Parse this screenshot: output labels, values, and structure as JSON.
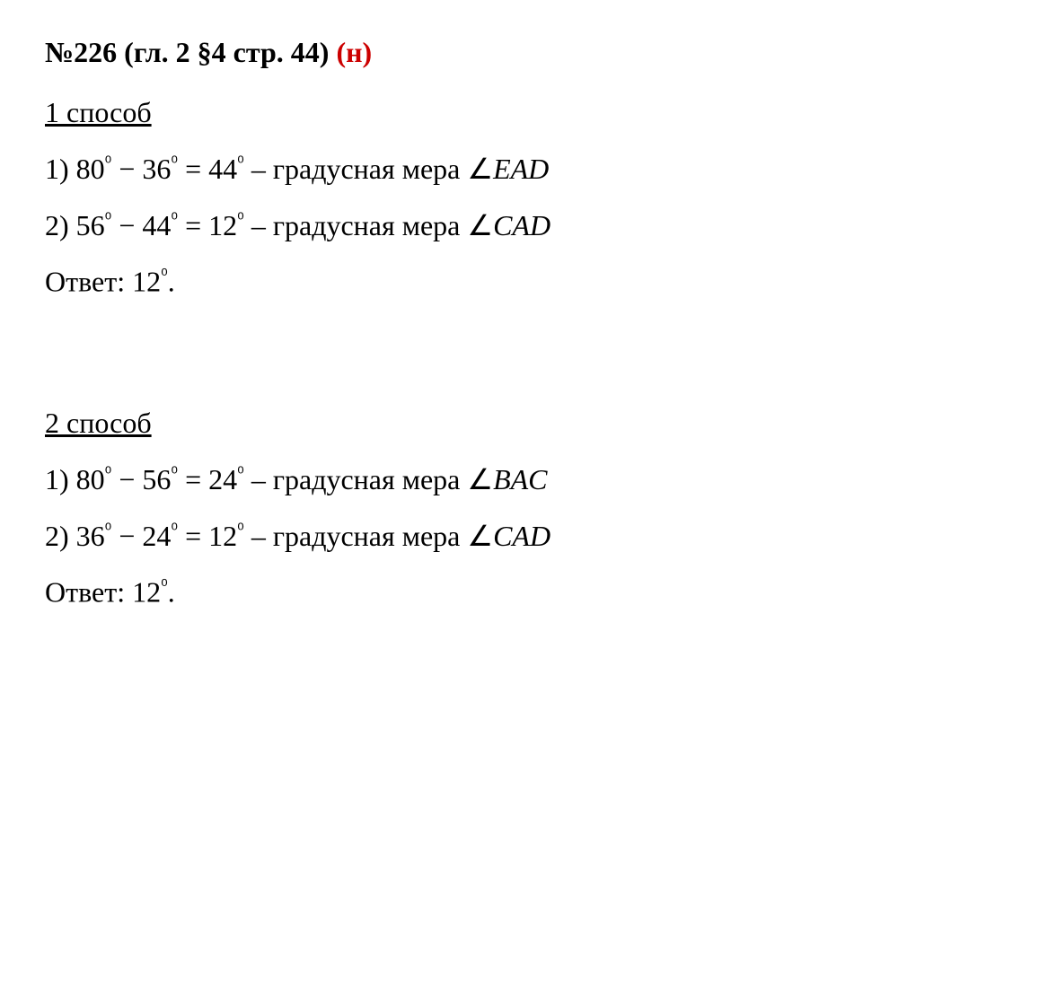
{
  "title": {
    "number": "№226",
    "ref": " (гл. 2 §4 стр. 44) ",
    "marker": "(н)",
    "title_color": "#000000",
    "marker_color": "#cc0000",
    "font_weight": "bold"
  },
  "methods": [
    {
      "heading": "1 способ",
      "steps": [
        {
          "num": "1)",
          "expr_left": "80",
          "op": " − ",
          "expr_right": "36",
          "eq": " = ",
          "result": "44",
          "deg_suffix": "⁰",
          "desc": " – градусная мера ",
          "angle_symbol": "∠",
          "angle_name": "EAD"
        },
        {
          "num": "2)",
          "expr_left": "56",
          "op": " − ",
          "expr_right": "44",
          "eq": " = ",
          "result": "12",
          "deg_suffix": "⁰",
          "desc": " – градусная мера ",
          "angle_symbol": "∠",
          "angle_name": "CAD"
        }
      ],
      "answer_label": "Ответ: ",
      "answer_value": "12",
      "answer_deg": "⁰",
      "answer_period": "."
    },
    {
      "heading": "2 способ",
      "steps": [
        {
          "num": "1)",
          "expr_left": "80",
          "op": " − ",
          "expr_right": "56",
          "eq": " = ",
          "result": "24",
          "deg_suffix": "⁰",
          "desc": " – градусная мера ",
          "angle_symbol": "∠",
          "angle_name": "BAC"
        },
        {
          "num": "2)",
          "expr_left": "36",
          "op": " − ",
          "expr_right": "24",
          "eq": " = ",
          "result": "12",
          "deg_suffix": "⁰",
          "desc": " – градусная мера ",
          "angle_symbol": "∠",
          "angle_name": "CAD"
        }
      ],
      "answer_label": "Ответ: ",
      "answer_value": "12",
      "answer_deg": "⁰",
      "answer_period": "."
    }
  ],
  "typography": {
    "font_family": "Times New Roman",
    "font_size_pt": 24,
    "background_color": "#ffffff",
    "text_color": "#000000"
  }
}
